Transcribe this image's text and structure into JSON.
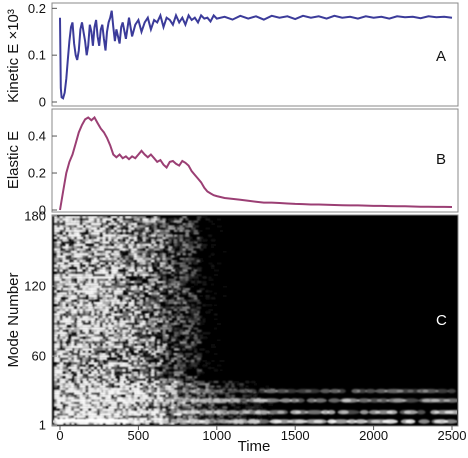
{
  "chart_data": [
    {
      "panel": "A",
      "type": "line",
      "ylabel": "Kinetic E ×10³",
      "ylim": [
        0,
        0.205
      ],
      "yticks": [
        "0",
        "0.1",
        "0.2"
      ],
      "color": "#3b3b9a",
      "series": [
        {
          "x": [
            0,
            5,
            10,
            20,
            30,
            40,
            50,
            60,
            70,
            80,
            90,
            100,
            110,
            120,
            130,
            140,
            150,
            160,
            170,
            180,
            190,
            200,
            210,
            220,
            230,
            240,
            250,
            260,
            270,
            280,
            290,
            300,
            310,
            320,
            330,
            340,
            350,
            360,
            370,
            380,
            390,
            400,
            420,
            440,
            460,
            480,
            500,
            520,
            540,
            560,
            580,
            600,
            620,
            640,
            660,
            680,
            700,
            720,
            740,
            760,
            780,
            800,
            820,
            840,
            860,
            880,
            900,
            920,
            940,
            960,
            980,
            1000,
            1050,
            1100,
            1150,
            1200,
            1250,
            1300,
            1350,
            1400,
            1450,
            1500,
            1550,
            1600,
            1650,
            1700,
            1750,
            1800,
            1850,
            1900,
            1950,
            2000,
            2050,
            2100,
            2150,
            2200,
            2250,
            2300,
            2350,
            2400,
            2450,
            2500
          ],
          "y": [
            0.18,
            0.03,
            0.01,
            0.008,
            0.02,
            0.05,
            0.09,
            0.13,
            0.16,
            0.17,
            0.125,
            0.1,
            0.09,
            0.11,
            0.155,
            0.17,
            0.15,
            0.13,
            0.1,
            0.12,
            0.165,
            0.15,
            0.12,
            0.16,
            0.175,
            0.14,
            0.12,
            0.155,
            0.165,
            0.135,
            0.11,
            0.15,
            0.17,
            0.18,
            0.195,
            0.16,
            0.13,
            0.155,
            0.14,
            0.125,
            0.16,
            0.17,
            0.135,
            0.18,
            0.14,
            0.165,
            0.175,
            0.15,
            0.17,
            0.18,
            0.155,
            0.175,
            0.17,
            0.185,
            0.16,
            0.18,
            0.175,
            0.165,
            0.185,
            0.17,
            0.18,
            0.165,
            0.185,
            0.175,
            0.18,
            0.17,
            0.185,
            0.178,
            0.18,
            0.172,
            0.185,
            0.178,
            0.182,
            0.176,
            0.184,
            0.178,
            0.183,
            0.176,
            0.184,
            0.18,
            0.183,
            0.177,
            0.184,
            0.18,
            0.183,
            0.178,
            0.184,
            0.18,
            0.182,
            0.178,
            0.183,
            0.18,
            0.182,
            0.178,
            0.183,
            0.181,
            0.182,
            0.179,
            0.183,
            0.181,
            0.182,
            0.18
          ]
        }
      ]
    },
    {
      "panel": "B",
      "type": "line",
      "ylabel": "Elastic E",
      "ylim": [
        0,
        0.53
      ],
      "yticks": [
        "0",
        "0.2",
        "0.4"
      ],
      "color": "#9b3f74",
      "series": [
        {
          "x": [
            0,
            20,
            40,
            60,
            80,
            100,
            120,
            140,
            160,
            180,
            200,
            220,
            240,
            260,
            280,
            300,
            320,
            340,
            360,
            380,
            400,
            420,
            440,
            460,
            480,
            500,
            520,
            540,
            560,
            580,
            600,
            620,
            640,
            660,
            680,
            700,
            720,
            740,
            760,
            780,
            800,
            820,
            840,
            860,
            880,
            900,
            920,
            940,
            960,
            980,
            1000,
            1050,
            1100,
            1150,
            1200,
            1250,
            1300,
            1350,
            1400,
            1450,
            1500,
            1550,
            1600,
            1650,
            1700,
            1750,
            1800,
            1850,
            1900,
            1950,
            2000,
            2050,
            2100,
            2150,
            2200,
            2250,
            2300,
            2350,
            2400,
            2450,
            2500
          ],
          "y": [
            0.0,
            0.1,
            0.2,
            0.26,
            0.3,
            0.36,
            0.42,
            0.46,
            0.49,
            0.5,
            0.485,
            0.5,
            0.47,
            0.44,
            0.42,
            0.39,
            0.35,
            0.3,
            0.285,
            0.3,
            0.28,
            0.29,
            0.275,
            0.29,
            0.28,
            0.3,
            0.32,
            0.3,
            0.285,
            0.3,
            0.28,
            0.26,
            0.27,
            0.245,
            0.23,
            0.26,
            0.265,
            0.25,
            0.24,
            0.265,
            0.255,
            0.24,
            0.21,
            0.19,
            0.17,
            0.15,
            0.12,
            0.1,
            0.09,
            0.08,
            0.075,
            0.065,
            0.06,
            0.055,
            0.05,
            0.045,
            0.04,
            0.04,
            0.038,
            0.035,
            0.033,
            0.032,
            0.03,
            0.03,
            0.028,
            0.027,
            0.026,
            0.025,
            0.025,
            0.024,
            0.022,
            0.022,
            0.021,
            0.02,
            0.02,
            0.019,
            0.018,
            0.018,
            0.017,
            0.017,
            0.016
          ]
        }
      ]
    },
    {
      "panel": "C",
      "type": "heatmap",
      "ylabel": "Mode  Number",
      "xlabel": "Time",
      "ylim": [
        1,
        180
      ],
      "xlim": [
        0,
        2500
      ],
      "yticks": [
        "1",
        "60",
        "120",
        "180"
      ],
      "xticks": [
        "0",
        "500",
        "1000",
        "1500",
        "2000",
        "2500"
      ],
      "colormap": [
        "#000000",
        "#ffffff"
      ]
    }
  ],
  "panel_labels": [
    "A",
    "B",
    "C"
  ]
}
